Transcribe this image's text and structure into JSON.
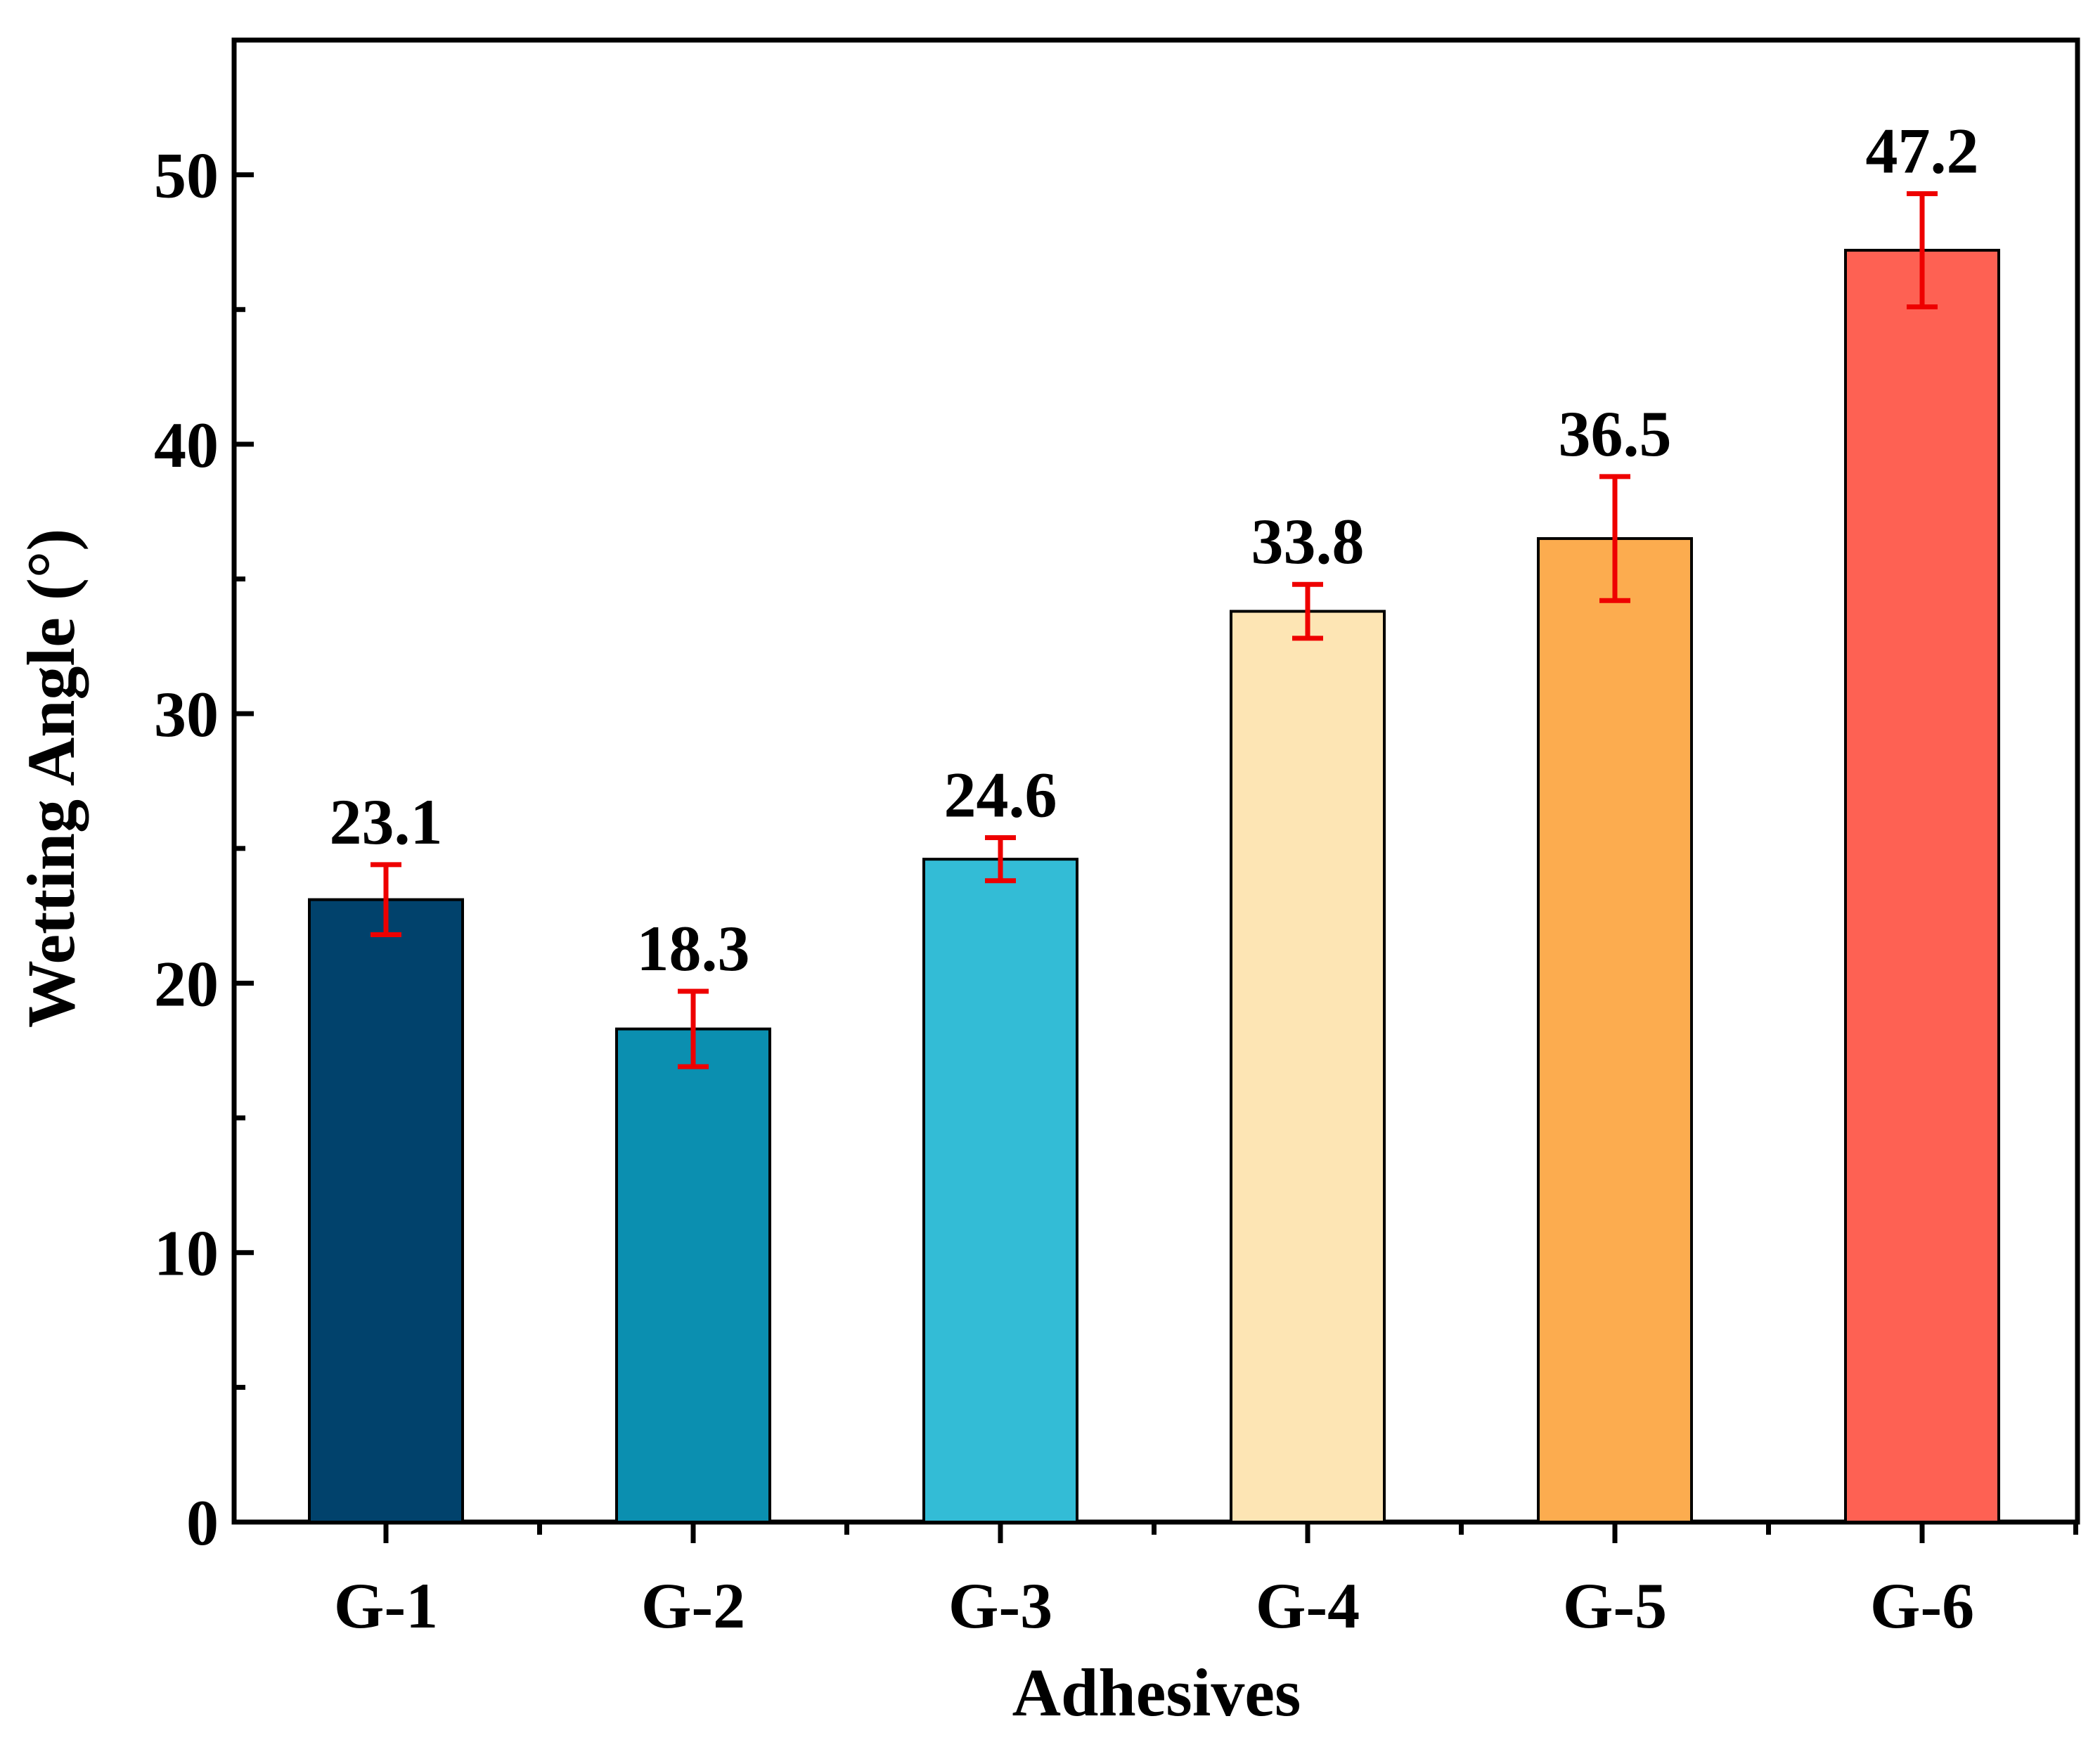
{
  "chart_data": {
    "type": "bar",
    "title": "",
    "xlabel": "Adhesives",
    "ylabel": "Wetting Angle (°)",
    "categories": [
      "G-1",
      "G-2",
      "G-3",
      "G-4",
      "G-5",
      "G-6"
    ],
    "values": [
      23.1,
      18.3,
      24.6,
      33.8,
      36.5,
      47.2
    ],
    "value_labels": [
      "23.1",
      "18.3",
      "24.6",
      "33.8",
      "36.5",
      "47.2"
    ],
    "error": [
      1.3,
      1.4,
      0.8,
      1.0,
      2.3,
      2.1
    ],
    "colors": [
      "#01426c",
      "#0b8fb0",
      "#33bcd6",
      "#fde5b4",
      "#fcac4f",
      "#fe6153"
    ],
    "error_color": "#ee0000",
    "ylim": [
      0,
      55
    ],
    "yticks": [
      0,
      10,
      20,
      30,
      40,
      50
    ],
    "ytick_labels": [
      "0",
      "10",
      "20",
      "30",
      "40",
      "50"
    ],
    "yminor_step": 5,
    "grid": false,
    "legend": "none"
  }
}
